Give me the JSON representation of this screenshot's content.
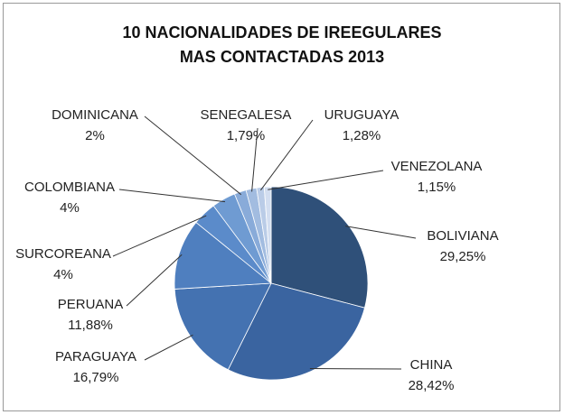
{
  "chart_data": {
    "type": "pie",
    "title": [
      "10 NACIONALIDADES DE IREEGULARES",
      "MAS CONTACTADAS 2013"
    ],
    "categories": [
      "BOLIVIANA",
      "CHINA",
      "PARAGUAYA",
      "PERUANA",
      "SURCOREANA",
      "COLOMBIANA",
      "DOMINICANA",
      "SENEGALESA",
      "URUGUAYA",
      "VENEZOLANA"
    ],
    "values": [
      29.25,
      28.42,
      16.79,
      11.88,
      4,
      4,
      2,
      1.79,
      1.28,
      1.15
    ],
    "value_labels": [
      "29,25%",
      "28,42%",
      "16,79%",
      "11,88%",
      "4%",
      "4%",
      "2%",
      "1,79%",
      "1,28%",
      "1,15%"
    ],
    "colors": [
      "#2f5079",
      "#3a64a0",
      "#4472b1",
      "#4f7fbf",
      "#5b8bca",
      "#6f9bd2",
      "#89abd9",
      "#a2bce0",
      "#bacce7",
      "#d3def0"
    ]
  }
}
